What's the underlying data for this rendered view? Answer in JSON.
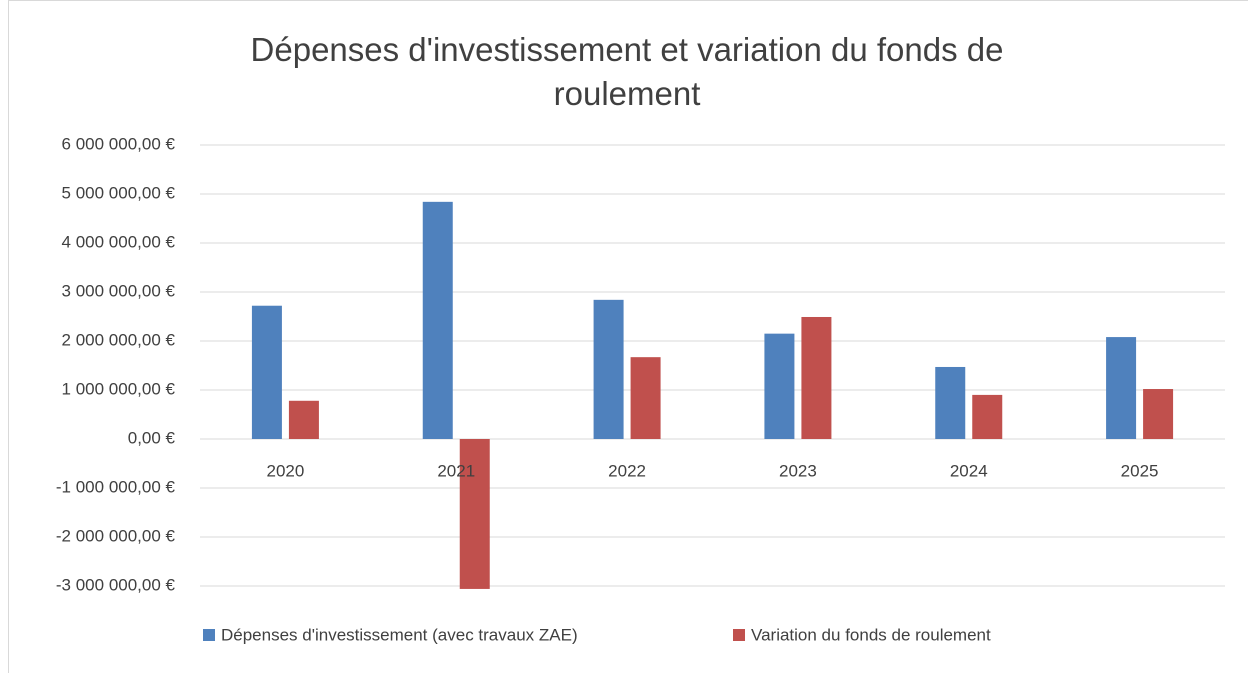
{
  "chart_data": {
    "type": "bar",
    "title": "Dépenses d'investissement et variation du fonds de roulement",
    "categories": [
      "2020",
      "2021",
      "2022",
      "2023",
      "2024",
      "2025"
    ],
    "series": [
      {
        "name": "Dépenses d'investissement (avec travaux ZAE)",
        "color": "#4f81bd",
        "values": [
          2720000,
          4840000,
          2840000,
          2150000,
          1470000,
          2080000
        ]
      },
      {
        "name": "Variation du fonds de roulement",
        "color": "#c0504d",
        "values": [
          780000,
          -3060000,
          1670000,
          2490000,
          900000,
          1020000
        ]
      }
    ],
    "ylim": [
      -3000000,
      6000000
    ],
    "yticks": [
      {
        "value": -3000000,
        "label": "-3 000 000,00 €"
      },
      {
        "value": -2000000,
        "label": "-2 000 000,00 €"
      },
      {
        "value": -1000000,
        "label": "-1 000 000,00 €"
      },
      {
        "value": 0,
        "label": "0,00 €"
      },
      {
        "value": 1000000,
        "label": "1 000 000,00 €"
      },
      {
        "value": 2000000,
        "label": "2 000 000,00 €"
      },
      {
        "value": 3000000,
        "label": "3 000 000,00 €"
      },
      {
        "value": 4000000,
        "label": "4 000 000,00 €"
      },
      {
        "value": 5000000,
        "label": "5 000 000,00 €"
      },
      {
        "value": 6000000,
        "label": "6 000 000,00 €"
      }
    ],
    "grid": true,
    "legend": "bottom"
  }
}
